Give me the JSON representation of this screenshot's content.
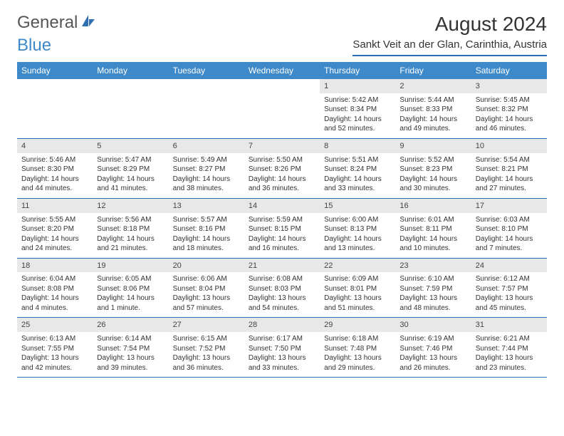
{
  "logo": {
    "text1": "General",
    "text2": "Blue",
    "text1_color": "#666666",
    "text2_color": "#3d89c9",
    "icon_color": "#2d6fb0"
  },
  "title": "August 2024",
  "location": "Sankt Veit an der Glan, Carinthia, Austria",
  "colors": {
    "header_bg": "#3d89c9",
    "header_text": "#ffffff",
    "border": "#2d6fb0",
    "daynum_bg": "#e8e8e8",
    "text": "#333333"
  },
  "day_names": [
    "Sunday",
    "Monday",
    "Tuesday",
    "Wednesday",
    "Thursday",
    "Friday",
    "Saturday"
  ],
  "weeks": [
    [
      {
        "n": "",
        "sr": "",
        "ss": "",
        "dl": ""
      },
      {
        "n": "",
        "sr": "",
        "ss": "",
        "dl": ""
      },
      {
        "n": "",
        "sr": "",
        "ss": "",
        "dl": ""
      },
      {
        "n": "",
        "sr": "",
        "ss": "",
        "dl": ""
      },
      {
        "n": "1",
        "sr": "Sunrise: 5:42 AM",
        "ss": "Sunset: 8:34 PM",
        "dl": "Daylight: 14 hours and 52 minutes."
      },
      {
        "n": "2",
        "sr": "Sunrise: 5:44 AM",
        "ss": "Sunset: 8:33 PM",
        "dl": "Daylight: 14 hours and 49 minutes."
      },
      {
        "n": "3",
        "sr": "Sunrise: 5:45 AM",
        "ss": "Sunset: 8:32 PM",
        "dl": "Daylight: 14 hours and 46 minutes."
      }
    ],
    [
      {
        "n": "4",
        "sr": "Sunrise: 5:46 AM",
        "ss": "Sunset: 8:30 PM",
        "dl": "Daylight: 14 hours and 44 minutes."
      },
      {
        "n": "5",
        "sr": "Sunrise: 5:47 AM",
        "ss": "Sunset: 8:29 PM",
        "dl": "Daylight: 14 hours and 41 minutes."
      },
      {
        "n": "6",
        "sr": "Sunrise: 5:49 AM",
        "ss": "Sunset: 8:27 PM",
        "dl": "Daylight: 14 hours and 38 minutes."
      },
      {
        "n": "7",
        "sr": "Sunrise: 5:50 AM",
        "ss": "Sunset: 8:26 PM",
        "dl": "Daylight: 14 hours and 36 minutes."
      },
      {
        "n": "8",
        "sr": "Sunrise: 5:51 AM",
        "ss": "Sunset: 8:24 PM",
        "dl": "Daylight: 14 hours and 33 minutes."
      },
      {
        "n": "9",
        "sr": "Sunrise: 5:52 AM",
        "ss": "Sunset: 8:23 PM",
        "dl": "Daylight: 14 hours and 30 minutes."
      },
      {
        "n": "10",
        "sr": "Sunrise: 5:54 AM",
        "ss": "Sunset: 8:21 PM",
        "dl": "Daylight: 14 hours and 27 minutes."
      }
    ],
    [
      {
        "n": "11",
        "sr": "Sunrise: 5:55 AM",
        "ss": "Sunset: 8:20 PM",
        "dl": "Daylight: 14 hours and 24 minutes."
      },
      {
        "n": "12",
        "sr": "Sunrise: 5:56 AM",
        "ss": "Sunset: 8:18 PM",
        "dl": "Daylight: 14 hours and 21 minutes."
      },
      {
        "n": "13",
        "sr": "Sunrise: 5:57 AM",
        "ss": "Sunset: 8:16 PM",
        "dl": "Daylight: 14 hours and 18 minutes."
      },
      {
        "n": "14",
        "sr": "Sunrise: 5:59 AM",
        "ss": "Sunset: 8:15 PM",
        "dl": "Daylight: 14 hours and 16 minutes."
      },
      {
        "n": "15",
        "sr": "Sunrise: 6:00 AM",
        "ss": "Sunset: 8:13 PM",
        "dl": "Daylight: 14 hours and 13 minutes."
      },
      {
        "n": "16",
        "sr": "Sunrise: 6:01 AM",
        "ss": "Sunset: 8:11 PM",
        "dl": "Daylight: 14 hours and 10 minutes."
      },
      {
        "n": "17",
        "sr": "Sunrise: 6:03 AM",
        "ss": "Sunset: 8:10 PM",
        "dl": "Daylight: 14 hours and 7 minutes."
      }
    ],
    [
      {
        "n": "18",
        "sr": "Sunrise: 6:04 AM",
        "ss": "Sunset: 8:08 PM",
        "dl": "Daylight: 14 hours and 4 minutes."
      },
      {
        "n": "19",
        "sr": "Sunrise: 6:05 AM",
        "ss": "Sunset: 8:06 PM",
        "dl": "Daylight: 14 hours and 1 minute."
      },
      {
        "n": "20",
        "sr": "Sunrise: 6:06 AM",
        "ss": "Sunset: 8:04 PM",
        "dl": "Daylight: 13 hours and 57 minutes."
      },
      {
        "n": "21",
        "sr": "Sunrise: 6:08 AM",
        "ss": "Sunset: 8:03 PM",
        "dl": "Daylight: 13 hours and 54 minutes."
      },
      {
        "n": "22",
        "sr": "Sunrise: 6:09 AM",
        "ss": "Sunset: 8:01 PM",
        "dl": "Daylight: 13 hours and 51 minutes."
      },
      {
        "n": "23",
        "sr": "Sunrise: 6:10 AM",
        "ss": "Sunset: 7:59 PM",
        "dl": "Daylight: 13 hours and 48 minutes."
      },
      {
        "n": "24",
        "sr": "Sunrise: 6:12 AM",
        "ss": "Sunset: 7:57 PM",
        "dl": "Daylight: 13 hours and 45 minutes."
      }
    ],
    [
      {
        "n": "25",
        "sr": "Sunrise: 6:13 AM",
        "ss": "Sunset: 7:55 PM",
        "dl": "Daylight: 13 hours and 42 minutes."
      },
      {
        "n": "26",
        "sr": "Sunrise: 6:14 AM",
        "ss": "Sunset: 7:54 PM",
        "dl": "Daylight: 13 hours and 39 minutes."
      },
      {
        "n": "27",
        "sr": "Sunrise: 6:15 AM",
        "ss": "Sunset: 7:52 PM",
        "dl": "Daylight: 13 hours and 36 minutes."
      },
      {
        "n": "28",
        "sr": "Sunrise: 6:17 AM",
        "ss": "Sunset: 7:50 PM",
        "dl": "Daylight: 13 hours and 33 minutes."
      },
      {
        "n": "29",
        "sr": "Sunrise: 6:18 AM",
        "ss": "Sunset: 7:48 PM",
        "dl": "Daylight: 13 hours and 29 minutes."
      },
      {
        "n": "30",
        "sr": "Sunrise: 6:19 AM",
        "ss": "Sunset: 7:46 PM",
        "dl": "Daylight: 13 hours and 26 minutes."
      },
      {
        "n": "31",
        "sr": "Sunrise: 6:21 AM",
        "ss": "Sunset: 7:44 PM",
        "dl": "Daylight: 13 hours and 23 minutes."
      }
    ]
  ]
}
